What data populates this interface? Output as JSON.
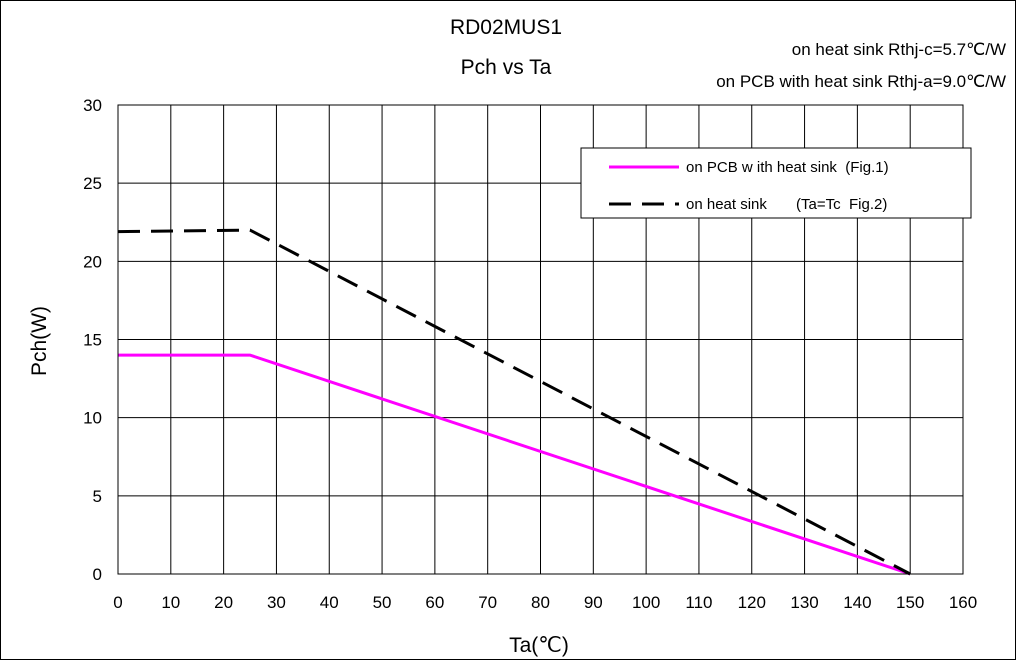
{
  "chart_data": {
    "type": "line",
    "title": "RD02MUS1",
    "subtitle": "Pch vs Ta",
    "annotations": [
      "on heat sink Rthj-c=5.7℃/W",
      "on PCB with heat sink Rthj-a=9.0℃/W"
    ],
    "xlabel": "Ta(℃)",
    "ylabel": "Pch(W)",
    "xlim": [
      0,
      160
    ],
    "ylim": [
      0,
      30
    ],
    "xticks": [
      0,
      10,
      20,
      30,
      40,
      50,
      60,
      70,
      80,
      90,
      100,
      110,
      120,
      130,
      140,
      150,
      160
    ],
    "yticks": [
      0,
      5,
      10,
      15,
      20,
      25,
      30
    ],
    "grid": true,
    "legend_position": "top-right",
    "series": [
      {
        "name": "on PCB w ith heat sink  (Fig.1)",
        "style": "solid",
        "color": "#ff00ff",
        "points": [
          [
            0,
            14
          ],
          [
            25,
            14
          ],
          [
            150,
            0
          ]
        ]
      },
      {
        "name": "on heat sink       (Ta=Tc  Fig.2)",
        "style": "dashed",
        "color": "#000000",
        "points": [
          [
            0,
            21.9
          ],
          [
            25,
            22
          ],
          [
            150,
            0
          ]
        ]
      }
    ]
  }
}
